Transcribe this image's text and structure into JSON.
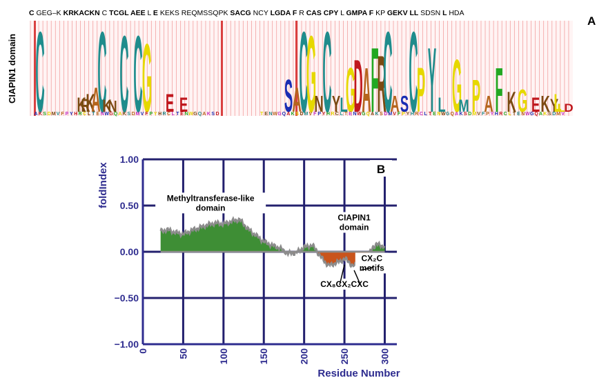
{
  "panel_a": {
    "label": "A",
    "row_label": "CIAPIN1 domain",
    "sequence": [
      {
        "t": "C",
        "b": true
      },
      {
        "t": "GEG–K",
        "b": false
      },
      {
        "t": "KRKACKN",
        "b": true
      },
      {
        "t": "C",
        "b": false
      },
      {
        "t": "TCGL",
        "b": true
      },
      {
        "t": "AEE",
        "b": true
      },
      {
        "t": "L",
        "b": false
      },
      {
        "t": "E",
        "b": true
      },
      {
        "t": "KEKS",
        "b": false
      },
      {
        "t": "REQMSSQPK",
        "b": false
      },
      {
        "t": "SACG",
        "b": true
      },
      {
        "t": "NCY",
        "b": false
      },
      {
        "t": "LGDA",
        "b": true
      },
      {
        "t": "F",
        "b": true
      },
      {
        "t": "R",
        "b": false
      },
      {
        "t": "CAS",
        "b": true
      },
      {
        "t": "CPY",
        "b": true
      },
      {
        "t": "L",
        "b": false
      },
      {
        "t": "GMPA",
        "b": true
      },
      {
        "t": "F",
        "b": true
      },
      {
        "t": "KP",
        "b": false
      },
      {
        "t": "GEKV",
        "b": true
      },
      {
        "t": "LL",
        "b": true
      },
      {
        "t": "SDSN",
        "b": false
      },
      {
        "t": "L",
        "b": true
      },
      {
        "t": "HDA",
        "b": false
      }
    ],
    "logo": [
      {
        "t": "C",
        "h": 1.0,
        "c": "#1f8c8c"
      },
      {
        "t": "K",
        "h": 0.18,
        "c": "#7b4a12"
      },
      {
        "t": "R",
        "h": 0.16,
        "c": "#7b4a12"
      },
      {
        "t": "K",
        "h": 0.22,
        "c": "#7b4a12"
      },
      {
        "t": "A",
        "h": 0.3,
        "c": "#b5651d"
      },
      {
        "t": "C",
        "h": 1.0,
        "c": "#1f8c8c"
      },
      {
        "t": "K",
        "h": 0.15,
        "c": "#7b4a12"
      },
      {
        "t": "N",
        "h": 0.14,
        "c": "#7b4a12"
      },
      {
        "t": "C",
        "h": 0.95,
        "c": "#1f8c8c"
      },
      {
        "t": "C",
        "h": 0.95,
        "c": "#1f8c8c"
      },
      {
        "t": "G",
        "h": 0.85,
        "c": "#e6d800"
      },
      {
        "t": "E",
        "h": 0.22,
        "c": "#c0181e"
      },
      {
        "t": "E",
        "h": 0.18,
        "c": "#c0181e"
      },
      {
        "t": "S",
        "h": 0.4,
        "c": "#1a2db3"
      },
      {
        "t": "A",
        "h": 0.3,
        "c": "#b5651d"
      },
      {
        "t": "C",
        "h": 1.0,
        "c": "#1f8c8c"
      },
      {
        "t": "G",
        "h": 0.95,
        "c": "#e6d800"
      },
      {
        "t": "N",
        "h": 0.2,
        "c": "#7b4a12"
      },
      {
        "t": "C",
        "h": 1.0,
        "c": "#1f8c8c"
      },
      {
        "t": "Y",
        "h": 0.2,
        "c": "#7b4a12"
      },
      {
        "t": "L",
        "h": 0.18,
        "c": "#1f8c8c"
      },
      {
        "t": "G",
        "h": 0.55,
        "c": "#e6d800"
      },
      {
        "t": "D",
        "h": 0.65,
        "c": "#c0181e"
      },
      {
        "t": "A",
        "h": 0.55,
        "c": "#b5651d"
      },
      {
        "t": "F",
        "h": 0.8,
        "c": "#22a822"
      },
      {
        "t": "R",
        "h": 0.7,
        "c": "#7b4a12"
      },
      {
        "t": "C",
        "h": 1.0,
        "c": "#1f8c8c"
      },
      {
        "t": "A",
        "h": 0.2,
        "c": "#b5651d"
      },
      {
        "t": "S",
        "h": 0.2,
        "c": "#1a2db3"
      },
      {
        "t": "C",
        "h": 1.0,
        "c": "#1f8c8c"
      },
      {
        "t": "P",
        "h": 0.55,
        "c": "#e6d800"
      },
      {
        "t": "Y",
        "h": 0.8,
        "c": "#1f8c8c"
      },
      {
        "t": "L",
        "h": 0.18,
        "c": "#1f8c8c"
      },
      {
        "t": "G",
        "h": 0.65,
        "c": "#e6d800"
      },
      {
        "t": "M",
        "h": 0.15,
        "c": "#1f8c8c"
      },
      {
        "t": "P",
        "h": 0.4,
        "c": "#e6d800"
      },
      {
        "t": "A",
        "h": 0.2,
        "c": "#b5651d"
      },
      {
        "t": "F",
        "h": 0.55,
        "c": "#22a822"
      },
      {
        "t": "K",
        "h": 0.25,
        "c": "#7b4a12"
      },
      {
        "t": "G",
        "h": 0.28,
        "c": "#e6d800"
      },
      {
        "t": "E",
        "h": 0.18,
        "c": "#c0181e"
      },
      {
        "t": "K",
        "h": 0.2,
        "c": "#7b4a12"
      },
      {
        "t": "Y",
        "h": 0.16,
        "c": "#7b4a12"
      },
      {
        "t": "L",
        "h": 0.22,
        "c": "#e6d800"
      },
      {
        "t": "L",
        "h": 0.1,
        "c": "#e6d800"
      },
      {
        "t": "D",
        "h": 0.1,
        "c": "#c0181e"
      }
    ]
  },
  "chart_data": {
    "type": "area",
    "panel_label": "B",
    "xlabel": "Residue Number",
    "ylabel": "foldIndex",
    "xlim": [
      0,
      315
    ],
    "ylim": [
      -1.0,
      1.0
    ],
    "xticks": [
      0,
      50,
      100,
      150,
      200,
      250,
      300
    ],
    "yticks": [
      1.0,
      0.5,
      0.0,
      -0.5,
      -1.0
    ],
    "ytick_labels": [
      "1.00",
      "0.50",
      "0.00",
      "−0.50",
      "−1.00"
    ],
    "grid": true,
    "x": [
      22,
      30,
      40,
      50,
      60,
      70,
      80,
      90,
      100,
      110,
      120,
      130,
      140,
      150,
      160,
      170,
      180,
      190,
      200,
      210,
      215,
      220,
      230,
      240,
      250,
      255,
      260,
      270,
      280,
      285,
      290,
      300
    ],
    "values": [
      0.22,
      0.24,
      0.21,
      0.19,
      0.23,
      0.26,
      0.29,
      0.31,
      0.3,
      0.33,
      0.35,
      0.25,
      0.18,
      0.11,
      0.07,
      0.04,
      -0.02,
      -0.01,
      0.05,
      0.07,
      0.02,
      -0.05,
      -0.15,
      -0.12,
      -0.08,
      -0.1,
      -0.16,
      -0.12,
      -0.04,
      0.05,
      0.08,
      0.06
    ],
    "colors": {
      "positive": "#3e8e35",
      "negative": "#c9541c",
      "edge": "#8c8c8c",
      "grid": "#23206e",
      "axis": "#2e2c8f"
    },
    "annotations": [
      {
        "lines": [
          "Methyltransferase-like",
          "domain"
        ],
        "x": 84,
        "y": 0.55
      },
      {
        "lines": [
          "CIAPIN1",
          "domain"
        ],
        "x": 262,
        "y": 0.34
      },
      {
        "lines": [
          "CX₂C",
          "motifs"
        ],
        "x": 284,
        "y": -0.1
      },
      {
        "lines": [
          "CX₈CX₂CXC"
        ],
        "x": 250,
        "y": -0.38
      }
    ]
  }
}
